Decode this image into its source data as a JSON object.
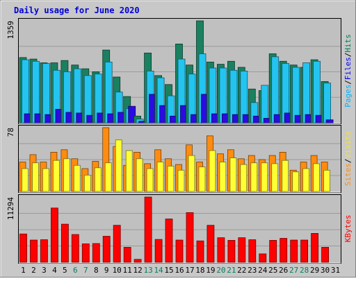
{
  "chart_data": {
    "type": "bar",
    "title": "Daily usage for June 2020",
    "x": [
      "1",
      "2",
      "3",
      "4",
      "5",
      "6",
      "7",
      "8",
      "9",
      "10",
      "11",
      "12",
      "13",
      "14",
      "15",
      "16",
      "17",
      "18",
      "19",
      "20",
      "21",
      "22",
      "23",
      "24",
      "25",
      "26",
      "27",
      "28",
      "29",
      "30",
      "31"
    ],
    "weekend_days": [
      "6",
      "7",
      "13",
      "14",
      "20",
      "21",
      "27",
      "28"
    ],
    "panels": [
      {
        "id": "hits-files-pages",
        "ymax_label": "1359",
        "ymax": 1359,
        "axis_labels": [
          "Pages",
          "Files",
          "Hits"
        ],
        "series": [
          {
            "name": "Hits",
            "color": "#1a8060",
            "values": [
              870,
              850,
              800,
              800,
              830,
              770,
              720,
              680,
              970,
              610,
              350,
              90,
              930,
              630,
              510,
              1050,
              770,
              1359,
              810,
              780,
              820,
              740,
              450,
              430,
              920,
              820,
              770,
              740,
              840,
              550,
              0
            ]
          },
          {
            "name": "Files",
            "color": "#24c4f0",
            "values": [
              840,
              820,
              790,
              700,
              680,
              720,
              630,
              650,
              810,
              410,
              190,
              50,
              690,
              600,
              360,
              850,
              650,
              920,
              730,
              730,
              700,
              690,
              270,
              500,
              880,
              790,
              740,
              800,
              820,
              530,
              0
            ]
          },
          {
            "name": "Pages",
            "color": "#2a0ce0",
            "values": [
              120,
              120,
              110,
              180,
              140,
              130,
              100,
              130,
              120,
              140,
              220,
              20,
              380,
              230,
              90,
              230,
              110,
              380,
              120,
              120,
              110,
              110,
              90,
              60,
              110,
              130,
              100,
              110,
              100,
              40,
              0
            ]
          }
        ]
      },
      {
        "id": "sites-visits",
        "ymax_label": "78",
        "ymax": 78,
        "axis_labels": [
          "Sites",
          "Visits"
        ],
        "series": [
          {
            "name": "Visits",
            "color": "#ff8c10",
            "values": [
              36,
              45,
              36,
              48,
              51,
              40,
              28,
              37,
              78,
              55,
              32,
              48,
              34,
              51,
              40,
              33,
              57,
              36,
              68,
              46,
              51,
              40,
              44,
              39,
              44,
              48,
              26,
              36,
              44,
              36,
              0
            ]
          },
          {
            "name": "Sites",
            "color": "#ffff33",
            "values": [
              28,
              35,
              28,
              38,
              40,
              32,
              20,
              29,
              35,
              63,
              50,
              40,
              28,
              36,
              31,
              26,
              44,
              30,
              50,
              36,
              41,
              33,
              35,
              35,
              34,
              38,
              24,
              28,
              34,
              26,
              0
            ]
          }
        ]
      },
      {
        "id": "kbytes",
        "ymax_label": "11294",
        "ymax": 11294,
        "axis_labels": [
          "KBytes"
        ],
        "series": [
          {
            "name": "KBytes",
            "color": "#ff0000",
            "values": [
              4900,
              3850,
              3900,
              9400,
              6600,
              4800,
              3200,
              3250,
              4500,
              6400,
              2600,
              500,
              11294,
              3950,
              7500,
              3850,
              8600,
              3700,
              6400,
              4250,
              3800,
              4250,
              3900,
              1450,
              3800,
              4150,
              3850,
              3850,
              5000,
              2600,
              0
            ]
          }
        ]
      }
    ]
  }
}
